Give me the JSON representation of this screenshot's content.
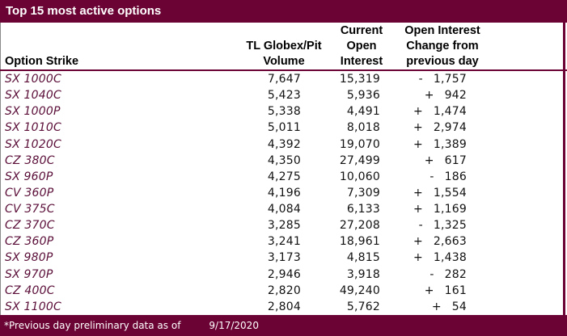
{
  "title": "Top 15 most active options",
  "colors": {
    "maroon_accent": "#6B0434",
    "strike_text": "#5A0E38",
    "data_text": "#121212",
    "title_text": "#FFFFFF"
  },
  "footer": {
    "note": "*Previous day preliminary data as of",
    "date": "9/17/2020"
  },
  "table": {
    "columns": {
      "strike": {
        "lines": [
          "Option Strike"
        ]
      },
      "volume": {
        "lines": [
          "TL Globex/Pit",
          "Volume"
        ]
      },
      "open_interest": {
        "lines": [
          "Current",
          "Open",
          "Interest"
        ]
      },
      "change": {
        "lines": [
          "Open Interest",
          "Change from",
          "previous day"
        ]
      }
    },
    "rows": [
      {
        "strike": "SX 1000C",
        "volume": "7,647",
        "open_interest": "15,319",
        "change_sign": "-",
        "change_value": "1,757"
      },
      {
        "strike": "SX 1040C",
        "volume": "5,423",
        "open_interest": "5,936",
        "change_sign": "+",
        "change_value": "942"
      },
      {
        "strike": "SX 1000P",
        "volume": "5,338",
        "open_interest": "4,491",
        "change_sign": "+",
        "change_value": "1,474"
      },
      {
        "strike": "SX 1010C",
        "volume": "5,011",
        "open_interest": "8,018",
        "change_sign": "+",
        "change_value": "2,974"
      },
      {
        "strike": "SX 1020C",
        "volume": "4,392",
        "open_interest": "19,070",
        "change_sign": "+",
        "change_value": "1,389"
      },
      {
        "strike": "CZ 380C",
        "volume": "4,350",
        "open_interest": "27,499",
        "change_sign": "+",
        "change_value": "617"
      },
      {
        "strike": "SX 960P",
        "volume": "4,275",
        "open_interest": "10,060",
        "change_sign": "-",
        "change_value": "186"
      },
      {
        "strike": "CV 360P",
        "volume": "4,196",
        "open_interest": "7,309",
        "change_sign": "+",
        "change_value": "1,554"
      },
      {
        "strike": "CV 375C",
        "volume": "4,084",
        "open_interest": "6,133",
        "change_sign": "+",
        "change_value": "1,169"
      },
      {
        "strike": "CZ 370C",
        "volume": "3,285",
        "open_interest": "27,208",
        "change_sign": "-",
        "change_value": "1,325"
      },
      {
        "strike": "CZ 360P",
        "volume": "3,241",
        "open_interest": "18,961",
        "change_sign": "+",
        "change_value": "2,663"
      },
      {
        "strike": "SX 980P",
        "volume": "3,173",
        "open_interest": "4,815",
        "change_sign": "+",
        "change_value": "1,438"
      },
      {
        "strike": "SX 970P",
        "volume": "2,946",
        "open_interest": "3,918",
        "change_sign": "-",
        "change_value": "282"
      },
      {
        "strike": "CZ 400C",
        "volume": "2,820",
        "open_interest": "49,240",
        "change_sign": "+",
        "change_value": "161"
      },
      {
        "strike": "SX 1100C",
        "volume": "2,804",
        "open_interest": "5,762",
        "change_sign": "+",
        "change_value": "54"
      }
    ]
  }
}
